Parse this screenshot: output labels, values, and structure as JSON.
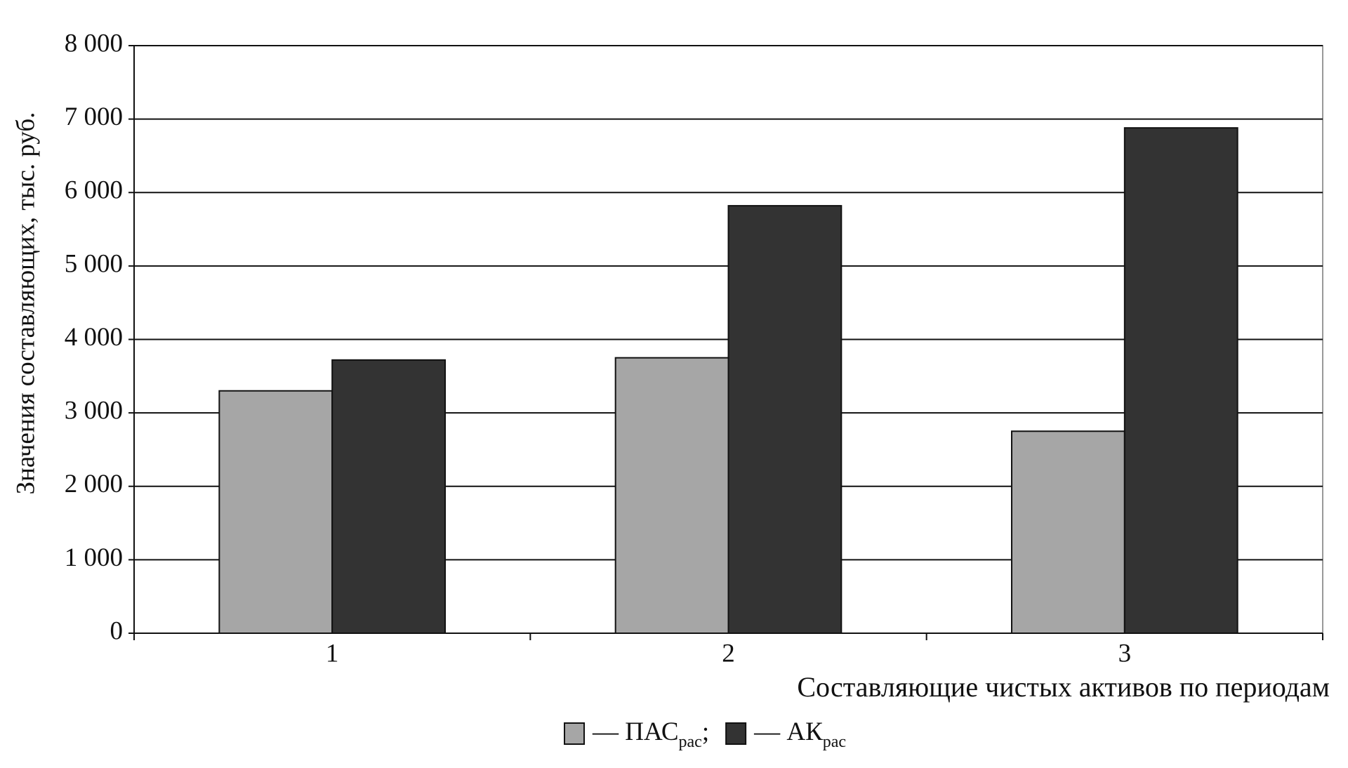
{
  "chart_data": {
    "type": "bar",
    "y_label": "Значения составляющих, тыс. руб.",
    "x_label": "Составляющие чистых активов по периодам",
    "categories": [
      "1",
      "2",
      "3"
    ],
    "series": [
      {
        "name": "ПАС",
        "subscript": "рас",
        "color": "#a6a6a6",
        "values": [
          3300,
          3750,
          2750
        ]
      },
      {
        "name": "АК",
        "subscript": "рас",
        "color": "#333333",
        "values": [
          3720,
          5820,
          6880
        ]
      }
    ],
    "legend_dash": "—",
    "legend_delimiter": ";",
    "ylim": [
      0,
      8000
    ],
    "yticks": [
      0,
      {
        "value": 1000,
        "label": "1 000"
      },
      {
        "value": 2000,
        "label": "2 000"
      },
      {
        "value": 3000,
        "label": "3 000"
      },
      {
        "value": 4000,
        "label": "4 000"
      },
      {
        "value": 5000,
        "label": "5 000"
      },
      {
        "value": 6000,
        "label": "6 000"
      },
      {
        "value": 7000,
        "label": "7 000"
      },
      {
        "value": 8000,
        "label": "8 000"
      }
    ],
    "grid": true
  }
}
